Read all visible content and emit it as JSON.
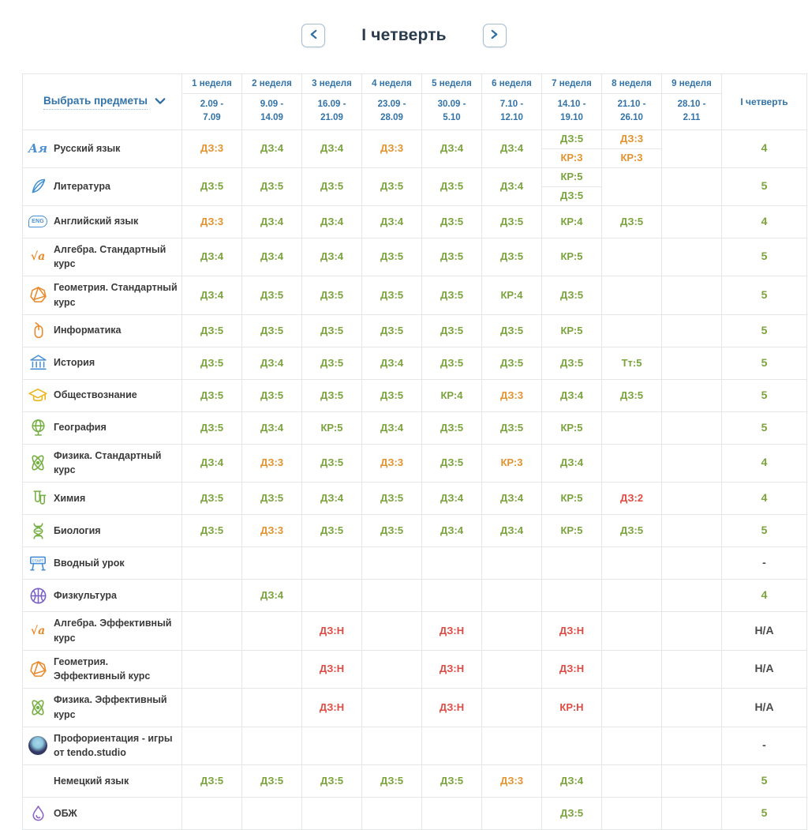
{
  "colors": {
    "g": "#7aa33c",
    "o": "#e2932f",
    "r": "#de4b42",
    "d": "#4a4a4a"
  },
  "nav": {
    "title": "I четверть"
  },
  "table": {
    "select_subjects": "Выбрать предметы",
    "quarter_header": "I четверть",
    "weeks": [
      {
        "label": "1 неделя",
        "dates": "2.09 -\n7.09"
      },
      {
        "label": "2 неделя",
        "dates": "9.09 -\n14.09"
      },
      {
        "label": "3 неделя",
        "dates": "16.09 -\n21.09"
      },
      {
        "label": "4 неделя",
        "dates": "23.09 -\n28.09"
      },
      {
        "label": "5 неделя",
        "dates": "30.09 -\n5.10"
      },
      {
        "label": "6 неделя",
        "dates": "7.10 -\n12.10"
      },
      {
        "label": "7 неделя",
        "dates": "14.10 -\n19.10"
      },
      {
        "label": "8 неделя",
        "dates": "21.10 -\n26.10"
      },
      {
        "label": "9 неделя",
        "dates": "28.10 -\n2.11"
      }
    ],
    "rows": [
      {
        "subject": "Русский язык",
        "icon": "russian-language-icon",
        "cells": [
          [
            [
              "ДЗ:3",
              "o"
            ]
          ],
          [
            [
              "ДЗ:4",
              "g"
            ]
          ],
          [
            [
              "ДЗ:4",
              "g"
            ]
          ],
          [
            [
              "ДЗ:3",
              "o"
            ]
          ],
          [
            [
              "ДЗ:4",
              "g"
            ]
          ],
          [
            [
              "ДЗ:4",
              "g"
            ]
          ],
          [
            [
              "ДЗ:5",
              "g"
            ],
            [
              "КР:3",
              "o"
            ]
          ],
          [
            [
              "ДЗ:3",
              "o"
            ],
            [
              "КР:3",
              "o"
            ]
          ],
          []
        ],
        "quarter": [
          "4",
          "g"
        ]
      },
      {
        "subject": "Литература",
        "icon": "literature-icon",
        "cells": [
          [
            [
              "ДЗ:5",
              "g"
            ]
          ],
          [
            [
              "ДЗ:5",
              "g"
            ]
          ],
          [
            [
              "ДЗ:5",
              "g"
            ]
          ],
          [
            [
              "ДЗ:5",
              "g"
            ]
          ],
          [
            [
              "ДЗ:5",
              "g"
            ]
          ],
          [
            [
              "ДЗ:4",
              "g"
            ]
          ],
          [
            [
              "КР:5",
              "g"
            ],
            [
              "ДЗ:5",
              "g"
            ]
          ],
          [],
          []
        ],
        "quarter": [
          "5",
          "g"
        ]
      },
      {
        "subject": "Английский язык",
        "icon": "english-language-icon",
        "cells": [
          [
            [
              "ДЗ:3",
              "o"
            ]
          ],
          [
            [
              "ДЗ:4",
              "g"
            ]
          ],
          [
            [
              "ДЗ:4",
              "g"
            ]
          ],
          [
            [
              "ДЗ:4",
              "g"
            ]
          ],
          [
            [
              "ДЗ:5",
              "g"
            ]
          ],
          [
            [
              "ДЗ:5",
              "g"
            ]
          ],
          [
            [
              "КР:4",
              "g"
            ]
          ],
          [
            [
              "ДЗ:5",
              "g"
            ]
          ],
          []
        ],
        "quarter": [
          "4",
          "g"
        ]
      },
      {
        "subject": "Алгебра. Стандартный курс",
        "icon": "algebra-icon",
        "cells": [
          [
            [
              "ДЗ:4",
              "g"
            ]
          ],
          [
            [
              "ДЗ:4",
              "g"
            ]
          ],
          [
            [
              "ДЗ:4",
              "g"
            ]
          ],
          [
            [
              "ДЗ:5",
              "g"
            ]
          ],
          [
            [
              "ДЗ:5",
              "g"
            ]
          ],
          [
            [
              "ДЗ:5",
              "g"
            ]
          ],
          [
            [
              "КР:5",
              "g"
            ]
          ],
          [],
          []
        ],
        "quarter": [
          "5",
          "g"
        ]
      },
      {
        "subject": "Геометрия. Стандартный курс",
        "icon": "geometry-icon",
        "cells": [
          [
            [
              "ДЗ:4",
              "g"
            ]
          ],
          [
            [
              "ДЗ:5",
              "g"
            ]
          ],
          [
            [
              "ДЗ:5",
              "g"
            ]
          ],
          [
            [
              "ДЗ:5",
              "g"
            ]
          ],
          [
            [
              "ДЗ:5",
              "g"
            ]
          ],
          [
            [
              "КР:4",
              "g"
            ]
          ],
          [
            [
              "ДЗ:5",
              "g"
            ]
          ],
          [],
          []
        ],
        "quarter": [
          "5",
          "g"
        ]
      },
      {
        "subject": "Информатика",
        "icon": "informatics-icon",
        "cells": [
          [
            [
              "ДЗ:5",
              "g"
            ]
          ],
          [
            [
              "ДЗ:5",
              "g"
            ]
          ],
          [
            [
              "ДЗ:5",
              "g"
            ]
          ],
          [
            [
              "ДЗ:5",
              "g"
            ]
          ],
          [
            [
              "ДЗ:5",
              "g"
            ]
          ],
          [
            [
              "ДЗ:5",
              "g"
            ]
          ],
          [
            [
              "КР:5",
              "g"
            ]
          ],
          [],
          []
        ],
        "quarter": [
          "5",
          "g"
        ]
      },
      {
        "subject": "История",
        "icon": "history-icon",
        "cells": [
          [
            [
              "ДЗ:5",
              "g"
            ]
          ],
          [
            [
              "ДЗ:4",
              "g"
            ]
          ],
          [
            [
              "ДЗ:5",
              "g"
            ]
          ],
          [
            [
              "ДЗ:4",
              "g"
            ]
          ],
          [
            [
              "ДЗ:5",
              "g"
            ]
          ],
          [
            [
              "ДЗ:5",
              "g"
            ]
          ],
          [
            [
              "ДЗ:5",
              "g"
            ]
          ],
          [
            [
              "Тт:5",
              "g"
            ]
          ],
          []
        ],
        "quarter": [
          "5",
          "g"
        ]
      },
      {
        "subject": "Обществознание",
        "icon": "social-studies-icon",
        "cells": [
          [
            [
              "ДЗ:5",
              "g"
            ]
          ],
          [
            [
              "ДЗ:5",
              "g"
            ]
          ],
          [
            [
              "ДЗ:5",
              "g"
            ]
          ],
          [
            [
              "ДЗ:5",
              "g"
            ]
          ],
          [
            [
              "КР:4",
              "g"
            ]
          ],
          [
            [
              "ДЗ:3",
              "o"
            ]
          ],
          [
            [
              "ДЗ:4",
              "g"
            ]
          ],
          [
            [
              "ДЗ:5",
              "g"
            ]
          ],
          []
        ],
        "quarter": [
          "5",
          "g"
        ]
      },
      {
        "subject": "География",
        "icon": "geography-icon",
        "cells": [
          [
            [
              "ДЗ:5",
              "g"
            ]
          ],
          [
            [
              "ДЗ:4",
              "g"
            ]
          ],
          [
            [
              "КР:5",
              "g"
            ]
          ],
          [
            [
              "ДЗ:4",
              "g"
            ]
          ],
          [
            [
              "ДЗ:5",
              "g"
            ]
          ],
          [
            [
              "ДЗ:5",
              "g"
            ]
          ],
          [
            [
              "КР:5",
              "g"
            ]
          ],
          [],
          []
        ],
        "quarter": [
          "5",
          "g"
        ]
      },
      {
        "subject": "Физика. Стандартный курс",
        "icon": "physics-icon",
        "cells": [
          [
            [
              "ДЗ:4",
              "g"
            ]
          ],
          [
            [
              "ДЗ:3",
              "o"
            ]
          ],
          [
            [
              "ДЗ:5",
              "g"
            ]
          ],
          [
            [
              "ДЗ:3",
              "o"
            ]
          ],
          [
            [
              "ДЗ:5",
              "g"
            ]
          ],
          [
            [
              "КР:3",
              "o"
            ]
          ],
          [
            [
              "ДЗ:4",
              "g"
            ]
          ],
          [],
          []
        ],
        "quarter": [
          "4",
          "g"
        ]
      },
      {
        "subject": "Химия",
        "icon": "chemistry-icon",
        "cells": [
          [
            [
              "ДЗ:5",
              "g"
            ]
          ],
          [
            [
              "ДЗ:5",
              "g"
            ]
          ],
          [
            [
              "ДЗ:4",
              "g"
            ]
          ],
          [
            [
              "ДЗ:5",
              "g"
            ]
          ],
          [
            [
              "ДЗ:4",
              "g"
            ]
          ],
          [
            [
              "ДЗ:4",
              "g"
            ]
          ],
          [
            [
              "КР:5",
              "g"
            ]
          ],
          [
            [
              "ДЗ:2",
              "r"
            ]
          ],
          []
        ],
        "quarter": [
          "4",
          "g"
        ]
      },
      {
        "subject": "Биология",
        "icon": "biology-icon",
        "cells": [
          [
            [
              "ДЗ:5",
              "g"
            ]
          ],
          [
            [
              "ДЗ:3",
              "o"
            ]
          ],
          [
            [
              "ДЗ:5",
              "g"
            ]
          ],
          [
            [
              "ДЗ:5",
              "g"
            ]
          ],
          [
            [
              "ДЗ:4",
              "g"
            ]
          ],
          [
            [
              "ДЗ:4",
              "g"
            ]
          ],
          [
            [
              "КР:5",
              "g"
            ]
          ],
          [
            [
              "ДЗ:5",
              "g"
            ]
          ],
          []
        ],
        "quarter": [
          "5",
          "g"
        ]
      },
      {
        "subject": "Вводный урок",
        "icon": "intro-lesson-icon",
        "cells": [
          [],
          [],
          [],
          [],
          [],
          [],
          [],
          [],
          []
        ],
        "quarter": [
          "-",
          "d"
        ]
      },
      {
        "subject": "Физкультура",
        "icon": "pe-icon",
        "cells": [
          [],
          [
            [
              "ДЗ:4",
              "g"
            ]
          ],
          [],
          [],
          [],
          [],
          [],
          [],
          []
        ],
        "quarter": [
          "4",
          "g"
        ]
      },
      {
        "subject": "Алгебра. Эффективный курс",
        "icon": "algebra-icon",
        "cells": [
          [],
          [],
          [
            [
              "ДЗ:Н",
              "r"
            ]
          ],
          [],
          [
            [
              "ДЗ:Н",
              "r"
            ]
          ],
          [],
          [
            [
              "ДЗ:Н",
              "r"
            ]
          ],
          [],
          []
        ],
        "quarter": [
          "Н/А",
          "d"
        ]
      },
      {
        "subject": "Геометрия. Эффективный курс",
        "icon": "geometry-icon",
        "cells": [
          [],
          [],
          [
            [
              "ДЗ:Н",
              "r"
            ]
          ],
          [],
          [
            [
              "ДЗ:Н",
              "r"
            ]
          ],
          [],
          [
            [
              "ДЗ:Н",
              "r"
            ]
          ],
          [],
          []
        ],
        "quarter": [
          "Н/А",
          "d"
        ]
      },
      {
        "subject": "Физика. Эффективный курс",
        "icon": "physics-icon",
        "cells": [
          [],
          [],
          [
            [
              "ДЗ:Н",
              "r"
            ]
          ],
          [],
          [
            [
              "ДЗ:Н",
              "r"
            ]
          ],
          [],
          [
            [
              "КР:Н",
              "r"
            ]
          ],
          [],
          []
        ],
        "quarter": [
          "Н/А",
          "d"
        ]
      },
      {
        "subject": "Профориентация - игры от tendo.studio",
        "icon": "career-icon",
        "cells": [
          [],
          [],
          [],
          [],
          [],
          [],
          [],
          [],
          []
        ],
        "quarter": [
          "-",
          "d"
        ]
      },
      {
        "subject": "Немецкий язык",
        "icon": null,
        "cells": [
          [
            [
              "ДЗ:5",
              "g"
            ]
          ],
          [
            [
              "ДЗ:5",
              "g"
            ]
          ],
          [
            [
              "ДЗ:5",
              "g"
            ]
          ],
          [
            [
              "ДЗ:5",
              "g"
            ]
          ],
          [
            [
              "ДЗ:5",
              "g"
            ]
          ],
          [
            [
              "ДЗ:3",
              "o"
            ]
          ],
          [
            [
              "ДЗ:4",
              "g"
            ]
          ],
          [],
          []
        ],
        "quarter": [
          "5",
          "g"
        ]
      },
      {
        "subject": "ОБЖ",
        "icon": "obzh-icon",
        "cells": [
          [],
          [],
          [],
          [],
          [],
          [],
          [
            [
              "ДЗ:5",
              "g"
            ]
          ],
          [],
          []
        ],
        "quarter": [
          "5",
          "g"
        ]
      }
    ]
  }
}
